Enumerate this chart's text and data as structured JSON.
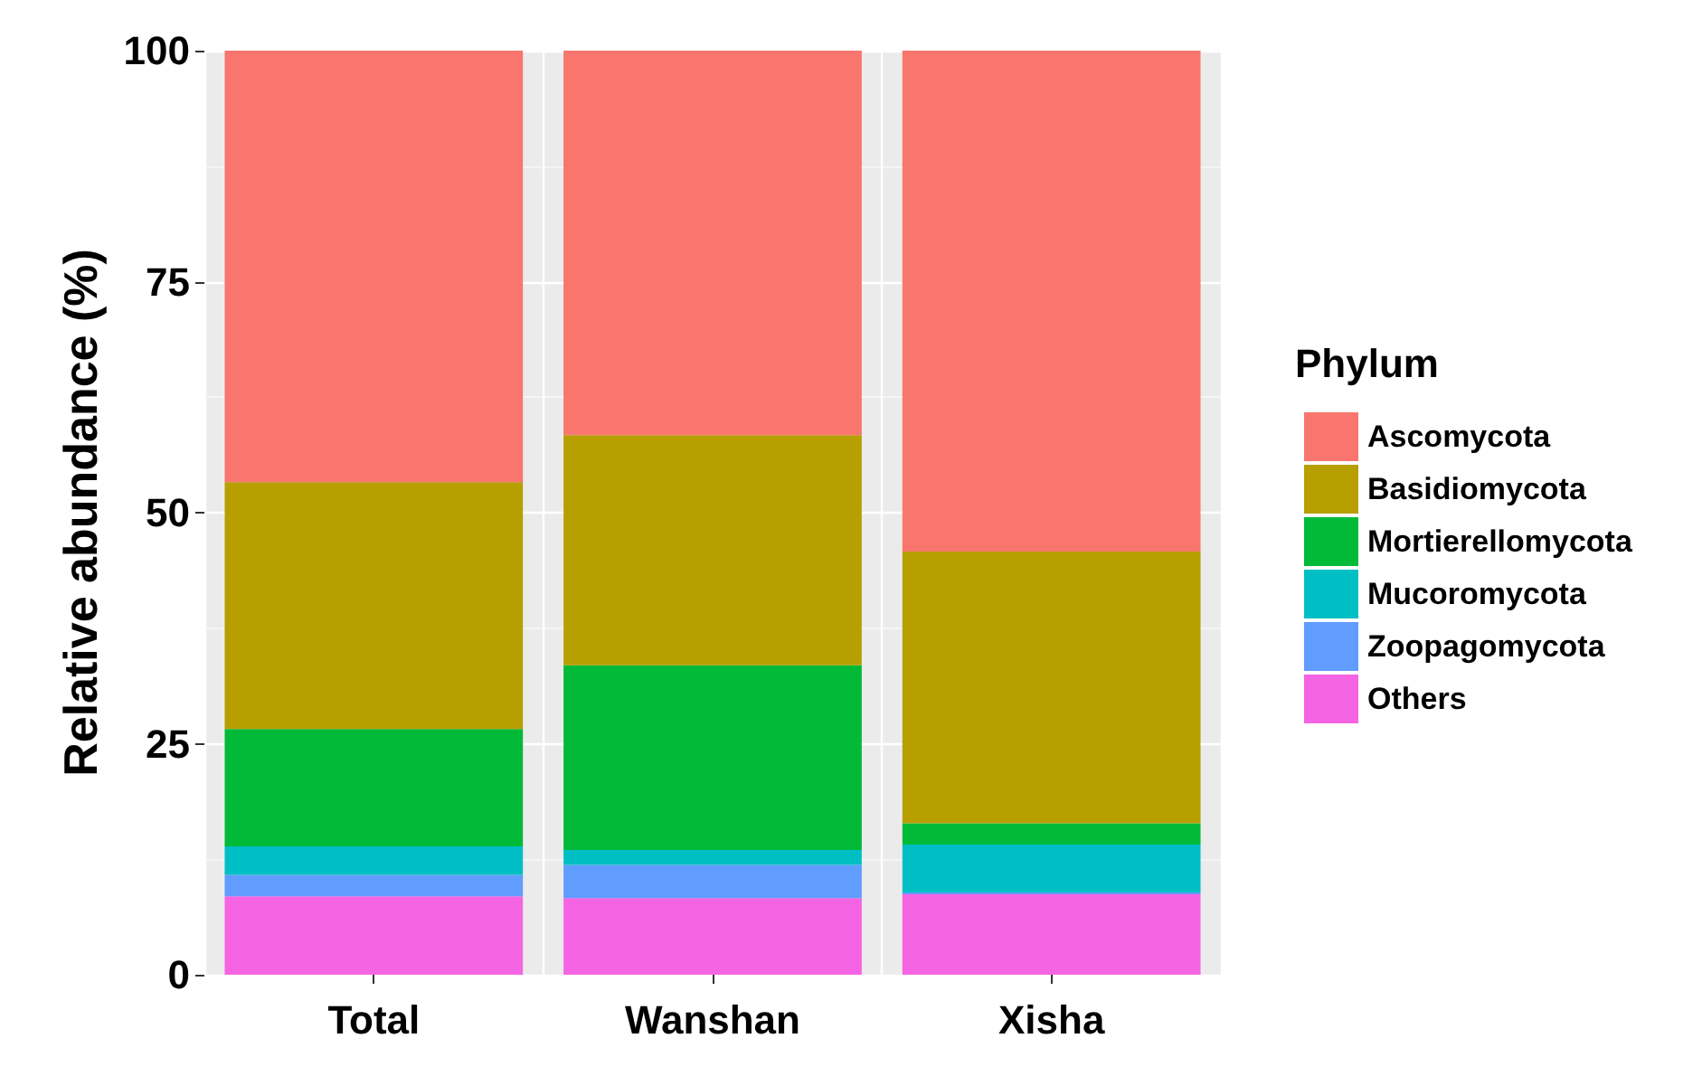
{
  "chart_data": {
    "type": "bar",
    "stacked": true,
    "ylabel": "Relative abundance (%)",
    "legend_title": "Phylum",
    "categories": [
      "Total",
      "Wanshan",
      "Xisha"
    ],
    "series": [
      {
        "name": "Others",
        "color": "#f564e3",
        "values": [
          8.5,
          8.3,
          8.7
        ]
      },
      {
        "name": "Zoopagomycota",
        "color": "#619cff",
        "values": [
          2.3,
          3.6,
          0.2
        ]
      },
      {
        "name": "Mucoromycota",
        "color": "#00bfc4",
        "values": [
          3.1,
          1.6,
          5.2
        ]
      },
      {
        "name": "Mortierellomycota",
        "color": "#00ba38",
        "values": [
          12.7,
          20.0,
          2.3
        ]
      },
      {
        "name": "Basidiomycota",
        "color": "#b79f00",
        "values": [
          26.7,
          24.9,
          29.4
        ]
      },
      {
        "name": "Ascomycota",
        "color": "#f8766d",
        "values": [
          46.7,
          41.6,
          54.2
        ]
      }
    ],
    "ylim": [
      0,
      100
    ],
    "yticks": [
      0,
      25,
      50,
      75,
      100
    ],
    "grid": true,
    "legend": "right"
  }
}
